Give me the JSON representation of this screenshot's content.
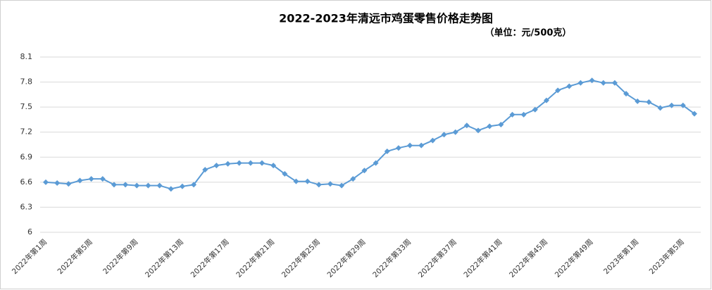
{
  "chart_data": {
    "type": "line",
    "title": "2022-2023年清远市鸡蛋零售价格走势图",
    "subtitle": "（单位：元/500克）",
    "categories": [
      "2022年第1周",
      null,
      null,
      null,
      "2022年第5周",
      null,
      null,
      null,
      "2022年第9周",
      null,
      null,
      null,
      "2022年第13周",
      null,
      null,
      null,
      "2022年第17周",
      null,
      null,
      null,
      "2022年第21周",
      null,
      null,
      null,
      "2022年第25周",
      null,
      null,
      null,
      "2022年第29周",
      null,
      null,
      null,
      "2022年第33周",
      null,
      null,
      null,
      "2022年第37周",
      null,
      null,
      null,
      "2022年第41周",
      null,
      null,
      null,
      "2022年第45周",
      null,
      null,
      null,
      "2022年第49周",
      null,
      null,
      null,
      "2023年第1周",
      null,
      null,
      null,
      "2023年第5周",
      null
    ],
    "values": [
      6.6,
      6.59,
      6.58,
      6.62,
      6.64,
      6.64,
      6.57,
      6.57,
      6.56,
      6.56,
      6.56,
      6.52,
      6.55,
      6.57,
      6.75,
      6.8,
      6.82,
      6.83,
      6.83,
      6.83,
      6.8,
      6.7,
      6.61,
      6.61,
      6.57,
      6.58,
      6.56,
      6.64,
      6.74,
      6.83,
      6.97,
      7.01,
      7.04,
      7.04,
      7.1,
      7.17,
      7.2,
      7.28,
      7.22,
      7.27,
      7.29,
      7.41,
      7.41,
      7.47,
      7.58,
      7.7,
      7.75,
      7.79,
      7.82,
      7.79,
      7.79,
      7.66,
      7.57,
      7.56,
      7.49,
      7.52,
      7.52,
      7.42
    ],
    "color": "#5b9bd5",
    "ylim": [
      6,
      8.1
    ],
    "yticks": [
      6,
      6.3,
      6.6,
      6.9,
      7.2,
      7.5,
      7.8,
      8.1
    ],
    "grid": true
  }
}
